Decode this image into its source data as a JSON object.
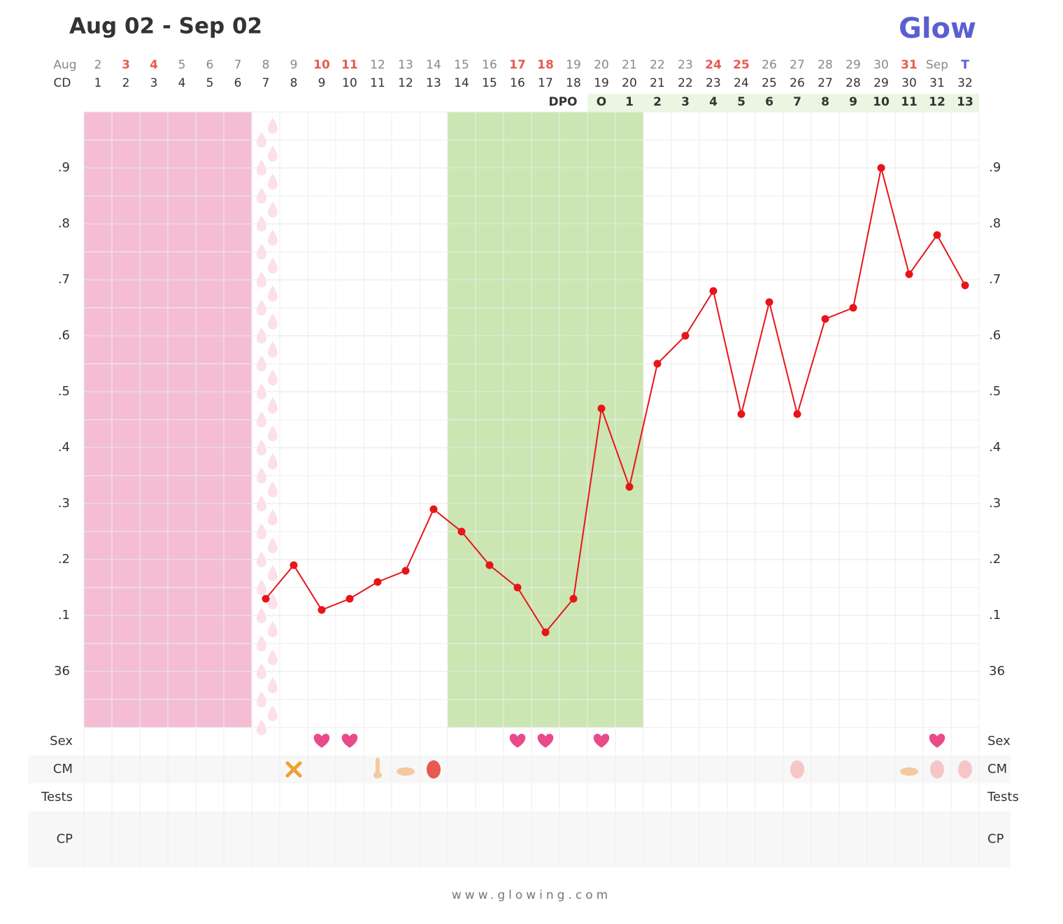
{
  "chart_data": {
    "type": "line",
    "title": "Aug 02 - Sep 02",
    "logo": "Glow",
    "footer": "www.glowing.com",
    "date_row_label": "Aug",
    "cd_row_label": "CD",
    "dpo_row_label": "DPO",
    "dates": [
      "2",
      "3",
      "4",
      "5",
      "6",
      "7",
      "8",
      "9",
      "10",
      "11",
      "12",
      "13",
      "14",
      "15",
      "16",
      "17",
      "18",
      "19",
      "20",
      "21",
      "22",
      "23",
      "24",
      "25",
      "26",
      "27",
      "28",
      "29",
      "30",
      "31",
      "Sep",
      "T"
    ],
    "date_colors": [
      "#888",
      "#e85a4f",
      "#e85a4f",
      "#888",
      "#888",
      "#888",
      "#888",
      "#888",
      "#e85a4f",
      "#e85a4f",
      "#888",
      "#888",
      "#888",
      "#888",
      "#888",
      "#e85a4f",
      "#e85a4f",
      "#888",
      "#888",
      "#888",
      "#888",
      "#888",
      "#e85a4f",
      "#e85a4f",
      "#888",
      "#888",
      "#888",
      "#888",
      "#888",
      "#e85a4f",
      "#888",
      "#5a5fd0"
    ],
    "categories": [
      1,
      2,
      3,
      4,
      5,
      6,
      7,
      8,
      9,
      10,
      11,
      12,
      13,
      14,
      15,
      16,
      17,
      18,
      19,
      20,
      21,
      22,
      23,
      24,
      25,
      26,
      27,
      28,
      29,
      30,
      31,
      32
    ],
    "dpo": [
      null,
      null,
      null,
      null,
      null,
      null,
      null,
      null,
      null,
      null,
      null,
      null,
      null,
      null,
      null,
      null,
      null,
      null,
      "O",
      1,
      2,
      3,
      4,
      5,
      6,
      7,
      8,
      9,
      10,
      11,
      12,
      13
    ],
    "values": [
      null,
      null,
      null,
      null,
      null,
      null,
      36.13,
      36.19,
      36.11,
      36.13,
      36.16,
      36.18,
      36.29,
      36.25,
      36.19,
      36.15,
      36.07,
      36.13,
      36.47,
      36.33,
      36.55,
      36.6,
      36.68,
      36.46,
      36.66,
      36.46,
      36.63,
      36.65,
      36.9,
      36.71,
      36.78,
      36.69
    ],
    "color": "#e8141a",
    "ylim": [
      35.9,
      37.0
    ],
    "yticks": [
      36,
      {
        "value": 36.1,
        "label": ".1"
      },
      {
        "value": 36.2,
        "label": ".2"
      },
      {
        "value": 36.3,
        "label": ".3"
      },
      {
        "value": 36.4,
        "label": ".4"
      },
      {
        "value": 36.5,
        "label": ".5"
      },
      {
        "value": 36.6,
        "label": ".6"
      },
      {
        "value": 36.7,
        "label": ".7"
      },
      {
        "value": 36.8,
        "label": ".8"
      },
      {
        "value": 36.9,
        "label": ".9"
      }
    ],
    "grid": true,
    "row_labels": [
      "Sex",
      "CM",
      "Tests",
      "CP"
    ]
  }
}
